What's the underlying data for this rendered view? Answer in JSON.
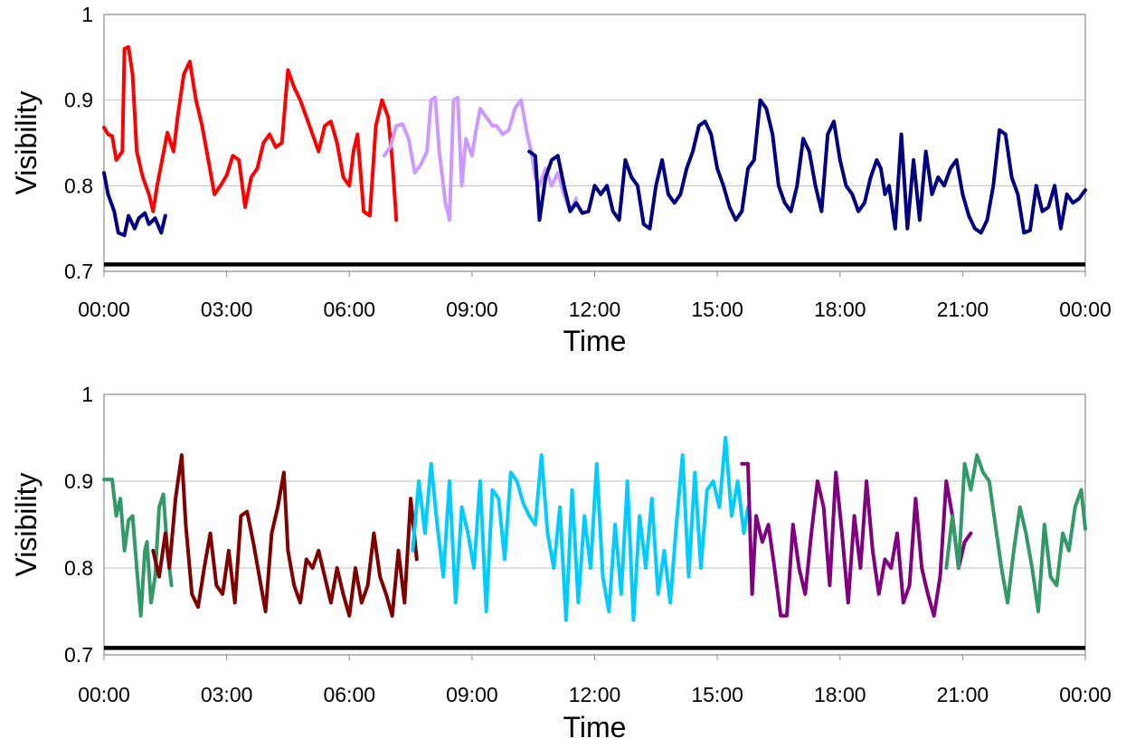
{
  "chart_data": [
    {
      "type": "line",
      "xlabel": "Time",
      "ylabel": "Visibility",
      "ylim": [
        0.7,
        1.0
      ],
      "xlim": [
        "00:00",
        "24:00"
      ],
      "y_ticks": [
        "0.7",
        "0.8",
        "0.9",
        "1"
      ],
      "x_ticks": [
        "00:00",
        "03:00",
        "06:00",
        "09:00",
        "12:00",
        "15:00",
        "18:00",
        "21:00",
        "00:00"
      ],
      "grid": "horizontal",
      "threshold": 0.708,
      "series": [
        {
          "color": "#000080",
          "x": [
            0.0,
            0.1,
            0.25,
            0.35,
            0.5,
            0.6,
            0.75,
            0.85,
            1.0,
            1.1,
            1.25,
            1.4,
            1.5
          ],
          "y": [
            0.815,
            0.79,
            0.77,
            0.745,
            0.742,
            0.765,
            0.75,
            0.762,
            0.768,
            0.755,
            0.762,
            0.745,
            0.765
          ]
        },
        {
          "color": "#ff0000",
          "x": [
            0.0,
            0.1,
            0.2,
            0.3,
            0.45,
            0.5,
            0.6,
            0.7,
            0.8,
            0.95,
            1.1,
            1.2,
            1.3,
            1.4,
            1.55,
            1.7,
            1.8,
            1.95,
            2.1,
            2.25,
            2.4,
            2.55,
            2.7,
            2.85,
            3.0,
            3.15,
            3.3,
            3.45,
            3.6,
            3.75,
            3.9,
            4.05,
            4.2,
            4.35,
            4.5,
            4.65,
            4.8,
            4.95,
            5.1,
            5.25,
            5.4,
            5.55,
            5.7,
            5.85,
            6.0,
            6.1,
            6.2,
            6.35,
            6.5,
            6.65,
            6.8,
            6.95,
            7.05,
            7.15
          ],
          "y": [
            0.868,
            0.86,
            0.858,
            0.83,
            0.84,
            0.96,
            0.962,
            0.93,
            0.84,
            0.81,
            0.79,
            0.77,
            0.8,
            0.825,
            0.862,
            0.84,
            0.88,
            0.93,
            0.945,
            0.9,
            0.87,
            0.83,
            0.79,
            0.8,
            0.812,
            0.835,
            0.83,
            0.775,
            0.81,
            0.82,
            0.85,
            0.86,
            0.845,
            0.85,
            0.935,
            0.915,
            0.9,
            0.88,
            0.86,
            0.84,
            0.87,
            0.875,
            0.85,
            0.81,
            0.8,
            0.84,
            0.86,
            0.77,
            0.765,
            0.87,
            0.9,
            0.88,
            0.83,
            0.76
          ]
        },
        {
          "color": "#cc99ff",
          "x": [
            6.85,
            7.0,
            7.15,
            7.3,
            7.45,
            7.6,
            7.75,
            7.9,
            8.0,
            8.1,
            8.2,
            8.35,
            8.45,
            8.55,
            8.65,
            8.75,
            8.85,
            9.0,
            9.1,
            9.2,
            9.35,
            9.5,
            9.6,
            9.75,
            9.9,
            10.05,
            10.2,
            10.35,
            10.45,
            10.55,
            10.65,
            10.8,
            10.95,
            11.1,
            11.25,
            11.4,
            11.55
          ],
          "y": [
            0.835,
            0.845,
            0.87,
            0.872,
            0.855,
            0.815,
            0.825,
            0.84,
            0.9,
            0.903,
            0.84,
            0.78,
            0.76,
            0.9,
            0.903,
            0.8,
            0.855,
            0.835,
            0.865,
            0.89,
            0.88,
            0.87,
            0.87,
            0.86,
            0.865,
            0.89,
            0.9,
            0.86,
            0.84,
            0.81,
            0.8,
            0.82,
            0.8,
            0.815,
            0.79,
            0.77,
            0.785
          ]
        },
        {
          "color": "#000080",
          "x": [
            10.4,
            10.55,
            10.65,
            10.8,
            10.95,
            11.1,
            11.25,
            11.4,
            11.55,
            11.7,
            11.85,
            12.0,
            12.15,
            12.3,
            12.45,
            12.6,
            12.75,
            12.9,
            13.05,
            13.2,
            13.35,
            13.5,
            13.65,
            13.8,
            13.95,
            14.1,
            14.25,
            14.4,
            14.55,
            14.7,
            14.85,
            15.0,
            15.15,
            15.3,
            15.45,
            15.6,
            15.75,
            15.9,
            16.05,
            16.2,
            16.35,
            16.5,
            16.65,
            16.8,
            16.95,
            17.1,
            17.25,
            17.4,
            17.55,
            17.7,
            17.85,
            18.0,
            18.15,
            18.3,
            18.45,
            18.6,
            18.75,
            18.9,
            19.0,
            19.1,
            19.2,
            19.35,
            19.5,
            19.65,
            19.8,
            19.95,
            20.1,
            20.25,
            20.4,
            20.55,
            20.7,
            20.85,
            21.0,
            21.15,
            21.3,
            21.45,
            21.6,
            21.75,
            21.9,
            22.05,
            22.2,
            22.35,
            22.5,
            22.65,
            22.8,
            22.95,
            23.1,
            23.25,
            23.4,
            23.55,
            23.7,
            23.85,
            24.0
          ],
          "y": [
            0.84,
            0.835,
            0.76,
            0.81,
            0.83,
            0.835,
            0.8,
            0.77,
            0.78,
            0.768,
            0.77,
            0.8,
            0.79,
            0.8,
            0.77,
            0.76,
            0.83,
            0.81,
            0.8,
            0.755,
            0.75,
            0.8,
            0.83,
            0.79,
            0.78,
            0.79,
            0.82,
            0.84,
            0.87,
            0.875,
            0.86,
            0.82,
            0.8,
            0.775,
            0.76,
            0.77,
            0.82,
            0.83,
            0.9,
            0.89,
            0.86,
            0.8,
            0.78,
            0.77,
            0.8,
            0.855,
            0.84,
            0.8,
            0.77,
            0.86,
            0.875,
            0.83,
            0.8,
            0.79,
            0.77,
            0.78,
            0.81,
            0.83,
            0.82,
            0.79,
            0.8,
            0.75,
            0.86,
            0.75,
            0.83,
            0.76,
            0.84,
            0.79,
            0.81,
            0.8,
            0.82,
            0.83,
            0.79,
            0.765,
            0.75,
            0.745,
            0.76,
            0.8,
            0.865,
            0.86,
            0.81,
            0.79,
            0.745,
            0.748,
            0.8,
            0.77,
            0.775,
            0.8,
            0.75,
            0.79,
            0.78,
            0.785,
            0.795
          ]
        }
      ]
    },
    {
      "type": "line",
      "xlabel": "Time",
      "ylabel": "Visibility",
      "ylim": [
        0.7,
        1.0
      ],
      "xlim": [
        "00:00",
        "24:00"
      ],
      "y_ticks": [
        "0.7",
        "0.8",
        "0.9",
        "1"
      ],
      "x_ticks": [
        "00:00",
        "03:00",
        "06:00",
        "09:00",
        "12:00",
        "15:00",
        "18:00",
        "21:00",
        "00:00"
      ],
      "grid": "horizontal",
      "threshold": 0.708,
      "series": [
        {
          "color": "#339966",
          "x": [
            0.0,
            0.2,
            0.3,
            0.4,
            0.5,
            0.6,
            0.7,
            0.8,
            0.9,
            1.0,
            1.05,
            1.15,
            1.25,
            1.35,
            1.45,
            1.55,
            1.65
          ],
          "y": [
            0.902,
            0.902,
            0.86,
            0.88,
            0.82,
            0.855,
            0.86,
            0.8,
            0.745,
            0.82,
            0.83,
            0.76,
            0.79,
            0.87,
            0.885,
            0.82,
            0.78
          ]
        },
        {
          "color": "#800000",
          "x": [
            1.2,
            1.35,
            1.5,
            1.6,
            1.75,
            1.9,
            2.0,
            2.15,
            2.3,
            2.45,
            2.6,
            2.75,
            2.9,
            3.05,
            3.2,
            3.35,
            3.5,
            3.65,
            3.8,
            3.95,
            4.1,
            4.25,
            4.4,
            4.5,
            4.65,
            4.8,
            4.95,
            5.1,
            5.25,
            5.4,
            5.55,
            5.7,
            5.85,
            6.0,
            6.15,
            6.3,
            6.45,
            6.6,
            6.75,
            6.9,
            7.05,
            7.2,
            7.35,
            7.5,
            7.65
          ],
          "y": [
            0.82,
            0.79,
            0.84,
            0.8,
            0.88,
            0.93,
            0.85,
            0.77,
            0.755,
            0.8,
            0.84,
            0.78,
            0.77,
            0.82,
            0.76,
            0.86,
            0.865,
            0.83,
            0.79,
            0.75,
            0.84,
            0.87,
            0.91,
            0.82,
            0.78,
            0.76,
            0.81,
            0.8,
            0.82,
            0.79,
            0.76,
            0.8,
            0.77,
            0.745,
            0.8,
            0.76,
            0.78,
            0.84,
            0.79,
            0.77,
            0.745,
            0.82,
            0.76,
            0.88,
            0.81
          ]
        },
        {
          "color": "#00ccff",
          "x": [
            7.55,
            7.7,
            7.85,
            8.0,
            8.15,
            8.3,
            8.45,
            8.6,
            8.75,
            8.9,
            9.05,
            9.2,
            9.35,
            9.5,
            9.65,
            9.8,
            9.95,
            10.1,
            10.25,
            10.4,
            10.55,
            10.7,
            10.85,
            11.0,
            11.15,
            11.3,
            11.45,
            11.6,
            11.75,
            11.9,
            12.05,
            12.2,
            12.35,
            12.5,
            12.65,
            12.8,
            12.95,
            13.1,
            13.25,
            13.4,
            13.55,
            13.7,
            13.85,
            14.0,
            14.15,
            14.3,
            14.45,
            14.6,
            14.75,
            14.9,
            15.05,
            15.2,
            15.35,
            15.5,
            15.65,
            15.75
          ],
          "y": [
            0.82,
            0.9,
            0.84,
            0.92,
            0.85,
            0.79,
            0.9,
            0.76,
            0.87,
            0.84,
            0.8,
            0.9,
            0.75,
            0.89,
            0.88,
            0.81,
            0.91,
            0.9,
            0.875,
            0.86,
            0.85,
            0.93,
            0.84,
            0.8,
            0.87,
            0.74,
            0.89,
            0.76,
            0.86,
            0.8,
            0.92,
            0.79,
            0.75,
            0.85,
            0.77,
            0.9,
            0.74,
            0.86,
            0.8,
            0.88,
            0.77,
            0.82,
            0.76,
            0.85,
            0.93,
            0.79,
            0.91,
            0.8,
            0.89,
            0.9,
            0.87,
            0.95,
            0.86,
            0.9,
            0.84,
            0.87
          ]
        },
        {
          "color": "#800080",
          "x": [
            15.6,
            15.75,
            15.85,
            15.95,
            16.1,
            16.25,
            16.4,
            16.55,
            16.7,
            16.85,
            17.0,
            17.15,
            17.3,
            17.45,
            17.6,
            17.75,
            17.9,
            18.05,
            18.2,
            18.35,
            18.5,
            18.65,
            18.8,
            18.95,
            19.1,
            19.25,
            19.4,
            19.55,
            19.7,
            19.85,
            20.0,
            20.15,
            20.3,
            20.45,
            20.6,
            20.75,
            20.9,
            21.05,
            21.2
          ],
          "y": [
            0.92,
            0.92,
            0.77,
            0.86,
            0.83,
            0.85,
            0.8,
            0.745,
            0.745,
            0.85,
            0.8,
            0.77,
            0.84,
            0.9,
            0.87,
            0.78,
            0.91,
            0.84,
            0.76,
            0.86,
            0.8,
            0.9,
            0.82,
            0.77,
            0.81,
            0.8,
            0.84,
            0.76,
            0.78,
            0.88,
            0.8,
            0.77,
            0.745,
            0.79,
            0.9,
            0.86,
            0.8,
            0.83,
            0.84
          ]
        },
        {
          "color": "#339966",
          "x": [
            20.6,
            20.75,
            20.9,
            21.05,
            21.2,
            21.35,
            21.5,
            21.65,
            21.8,
            21.95,
            22.1,
            22.25,
            22.4,
            22.55,
            22.7,
            22.85,
            23.0,
            23.15,
            23.3,
            23.45,
            23.6,
            23.75,
            23.9,
            24.0
          ],
          "y": [
            0.8,
            0.86,
            0.8,
            0.92,
            0.89,
            0.93,
            0.91,
            0.9,
            0.85,
            0.8,
            0.76,
            0.82,
            0.87,
            0.84,
            0.8,
            0.75,
            0.85,
            0.79,
            0.78,
            0.84,
            0.82,
            0.87,
            0.89,
            0.845
          ]
        }
      ]
    }
  ]
}
